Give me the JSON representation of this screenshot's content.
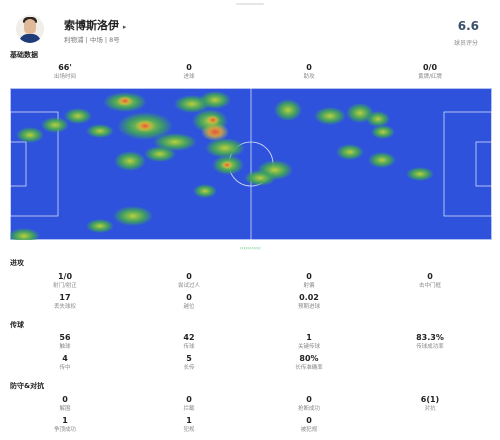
{
  "player": {
    "name": "索博斯洛伊",
    "arrow": "▸",
    "meta": "利物浦 | 中场 | 8号",
    "rating": "6.6",
    "rating_label": "球员评分"
  },
  "sections": {
    "basic": "基础数据",
    "attack": "进攻",
    "passing": "传球",
    "defense": "防守&对抗"
  },
  "basic_stats": [
    {
      "value": "66'",
      "label": "出场时间"
    },
    {
      "value": "0",
      "label": "进球"
    },
    {
      "value": "0",
      "label": "助攻"
    },
    {
      "value": "0/0",
      "label": "黄牌/红牌"
    }
  ],
  "attack_stats": [
    {
      "value": "1/0",
      "label": "射门/射正"
    },
    {
      "value": "0",
      "label": "尝试过人"
    },
    {
      "value": "0",
      "label": "射偏"
    },
    {
      "value": "0",
      "label": "击中门框"
    },
    {
      "value": "17",
      "label": "丢失球权"
    },
    {
      "value": "0",
      "label": "越位"
    },
    {
      "value": "0.02",
      "label": "预期进球"
    }
  ],
  "passing_stats": [
    {
      "value": "56",
      "label": "触球"
    },
    {
      "value": "42",
      "label": "传球"
    },
    {
      "value": "1",
      "label": "关键传球"
    },
    {
      "value": "83.3%",
      "label": "传球成功率"
    },
    {
      "value": "4",
      "label": "传中"
    },
    {
      "value": "5",
      "label": "长传"
    },
    {
      "value": "80%",
      "label": "长传准确率"
    }
  ],
  "defense_stats": [
    {
      "value": "0",
      "label": "解围"
    },
    {
      "value": "0",
      "label": "拦截"
    },
    {
      "value": "0",
      "label": "抢断成功"
    },
    {
      "value": "6(1)",
      "label": "对抗"
    },
    {
      "value": "1",
      "label": "争顶成功"
    },
    {
      "value": "1",
      "label": "犯规"
    },
    {
      "value": "0",
      "label": "被犯规"
    }
  ],
  "pager_dots": "‹‹‹‹‹‹‹‹‹‹‹",
  "colors": {
    "pitch": "#2e52dc",
    "heat_low": "#3fa35a",
    "heat_mid": "#b9d23a",
    "heat_high": "#e9523a",
    "rating": "#3a4f6b"
  }
}
